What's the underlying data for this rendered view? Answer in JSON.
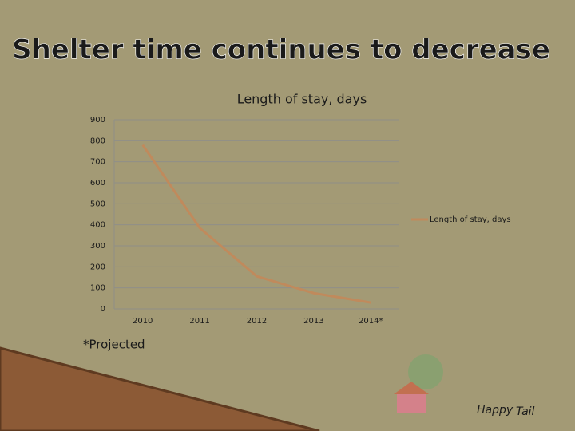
{
  "slide": {
    "title": "Shelter time continues to decrease",
    "footnote": "*Projected",
    "logo": [
      "Happy",
      "Tail"
    ]
  },
  "chart_data": {
    "type": "line",
    "title": "Length of stay, days",
    "categories": [
      "2010",
      "2011",
      "2012",
      "2013",
      "2014*"
    ],
    "series": [
      {
        "name": "Length of stay, days",
        "color": "#c08a5c",
        "values": [
          780,
          385,
          155,
          75,
          30
        ]
      }
    ],
    "ylim": [
      0,
      900
    ],
    "yticks": [
      0,
      100,
      200,
      300,
      400,
      500,
      600,
      700,
      800,
      900
    ],
    "grid": true,
    "legend": "right"
  }
}
